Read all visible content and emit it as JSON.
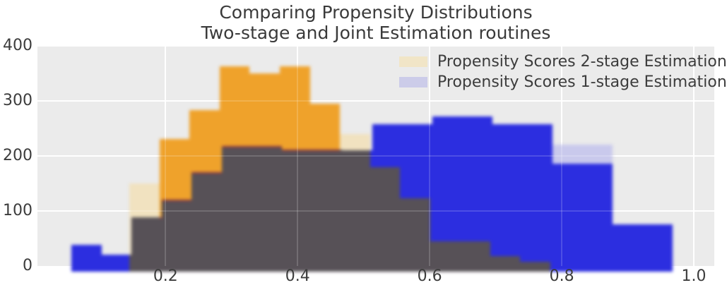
{
  "title": {
    "line1": "Comparing Propensity Distributions",
    "line2": "Two-stage and Joint Estimation routines"
  },
  "legend": {
    "position": "upper right",
    "items": [
      {
        "label": "Propensity Scores 2-stage Estimation",
        "swatch_color": "#f1e5c7"
      },
      {
        "label": "Propensity Scores 1-stage Estimation",
        "swatch_color": "#cccce9"
      }
    ]
  },
  "axes": {
    "x_ticks": [
      {
        "label": "0.2",
        "value": 0.2
      },
      {
        "label": "0.4",
        "value": 0.4
      },
      {
        "label": "0.6",
        "value": 0.6
      },
      {
        "label": "0.8",
        "value": 0.8
      },
      {
        "label": "1.0",
        "value": 1.0
      }
    ],
    "y_ticks": [
      {
        "label": "0",
        "value": 0
      },
      {
        "label": "100",
        "value": 100
      },
      {
        "label": "200",
        "value": 200
      },
      {
        "label": "300",
        "value": 300
      },
      {
        "label": "400",
        "value": 400
      }
    ]
  },
  "colors": {
    "figure_bg": "#ffffff",
    "plot_bg": "#ebebeb",
    "grid": "#ffffff",
    "text": "#3c3c3c"
  },
  "chart_data": {
    "type": "histogram",
    "title": "Comparing Propensity Distributions / Two-stage and Joint Estimation routines",
    "xlabel": "",
    "ylabel": "",
    "xlim": [
      0.006,
      1.031
    ],
    "ylim": [
      0,
      401
    ],
    "grid": true,
    "legend_position": "upper right",
    "overlap_color": "#575157",
    "overlap_edge_color": "#8f2e3e",
    "series": [
      {
        "name": "Propensity Scores 2-stage Estimation",
        "color": "#efa22b",
        "light_color": "#f1e0ba",
        "bin_start": 0.1455,
        "bin_width": 0.0455,
        "values": [
          150,
          230,
          283,
          362,
          350,
          362,
          295,
          240,
          179,
          123,
          45,
          45,
          18,
          8
        ],
        "light_bins": [
          0,
          7
        ]
      },
      {
        "name": "Propensity Scores 1-stage Estimation",
        "color": "#2c2ee0",
        "light_color": "#c5c5ec",
        "bin_start": 0.0577,
        "bin_width": 0.0455,
        "values": [
          38,
          20,
          88,
          120,
          170,
          218,
          218,
          212,
          212,
          210,
          258,
          258,
          272,
          272,
          258,
          258,
          186,
          186,
          76,
          76
        ],
        "light_caps": {
          "16": 220,
          "17": 220
        }
      }
    ]
  }
}
